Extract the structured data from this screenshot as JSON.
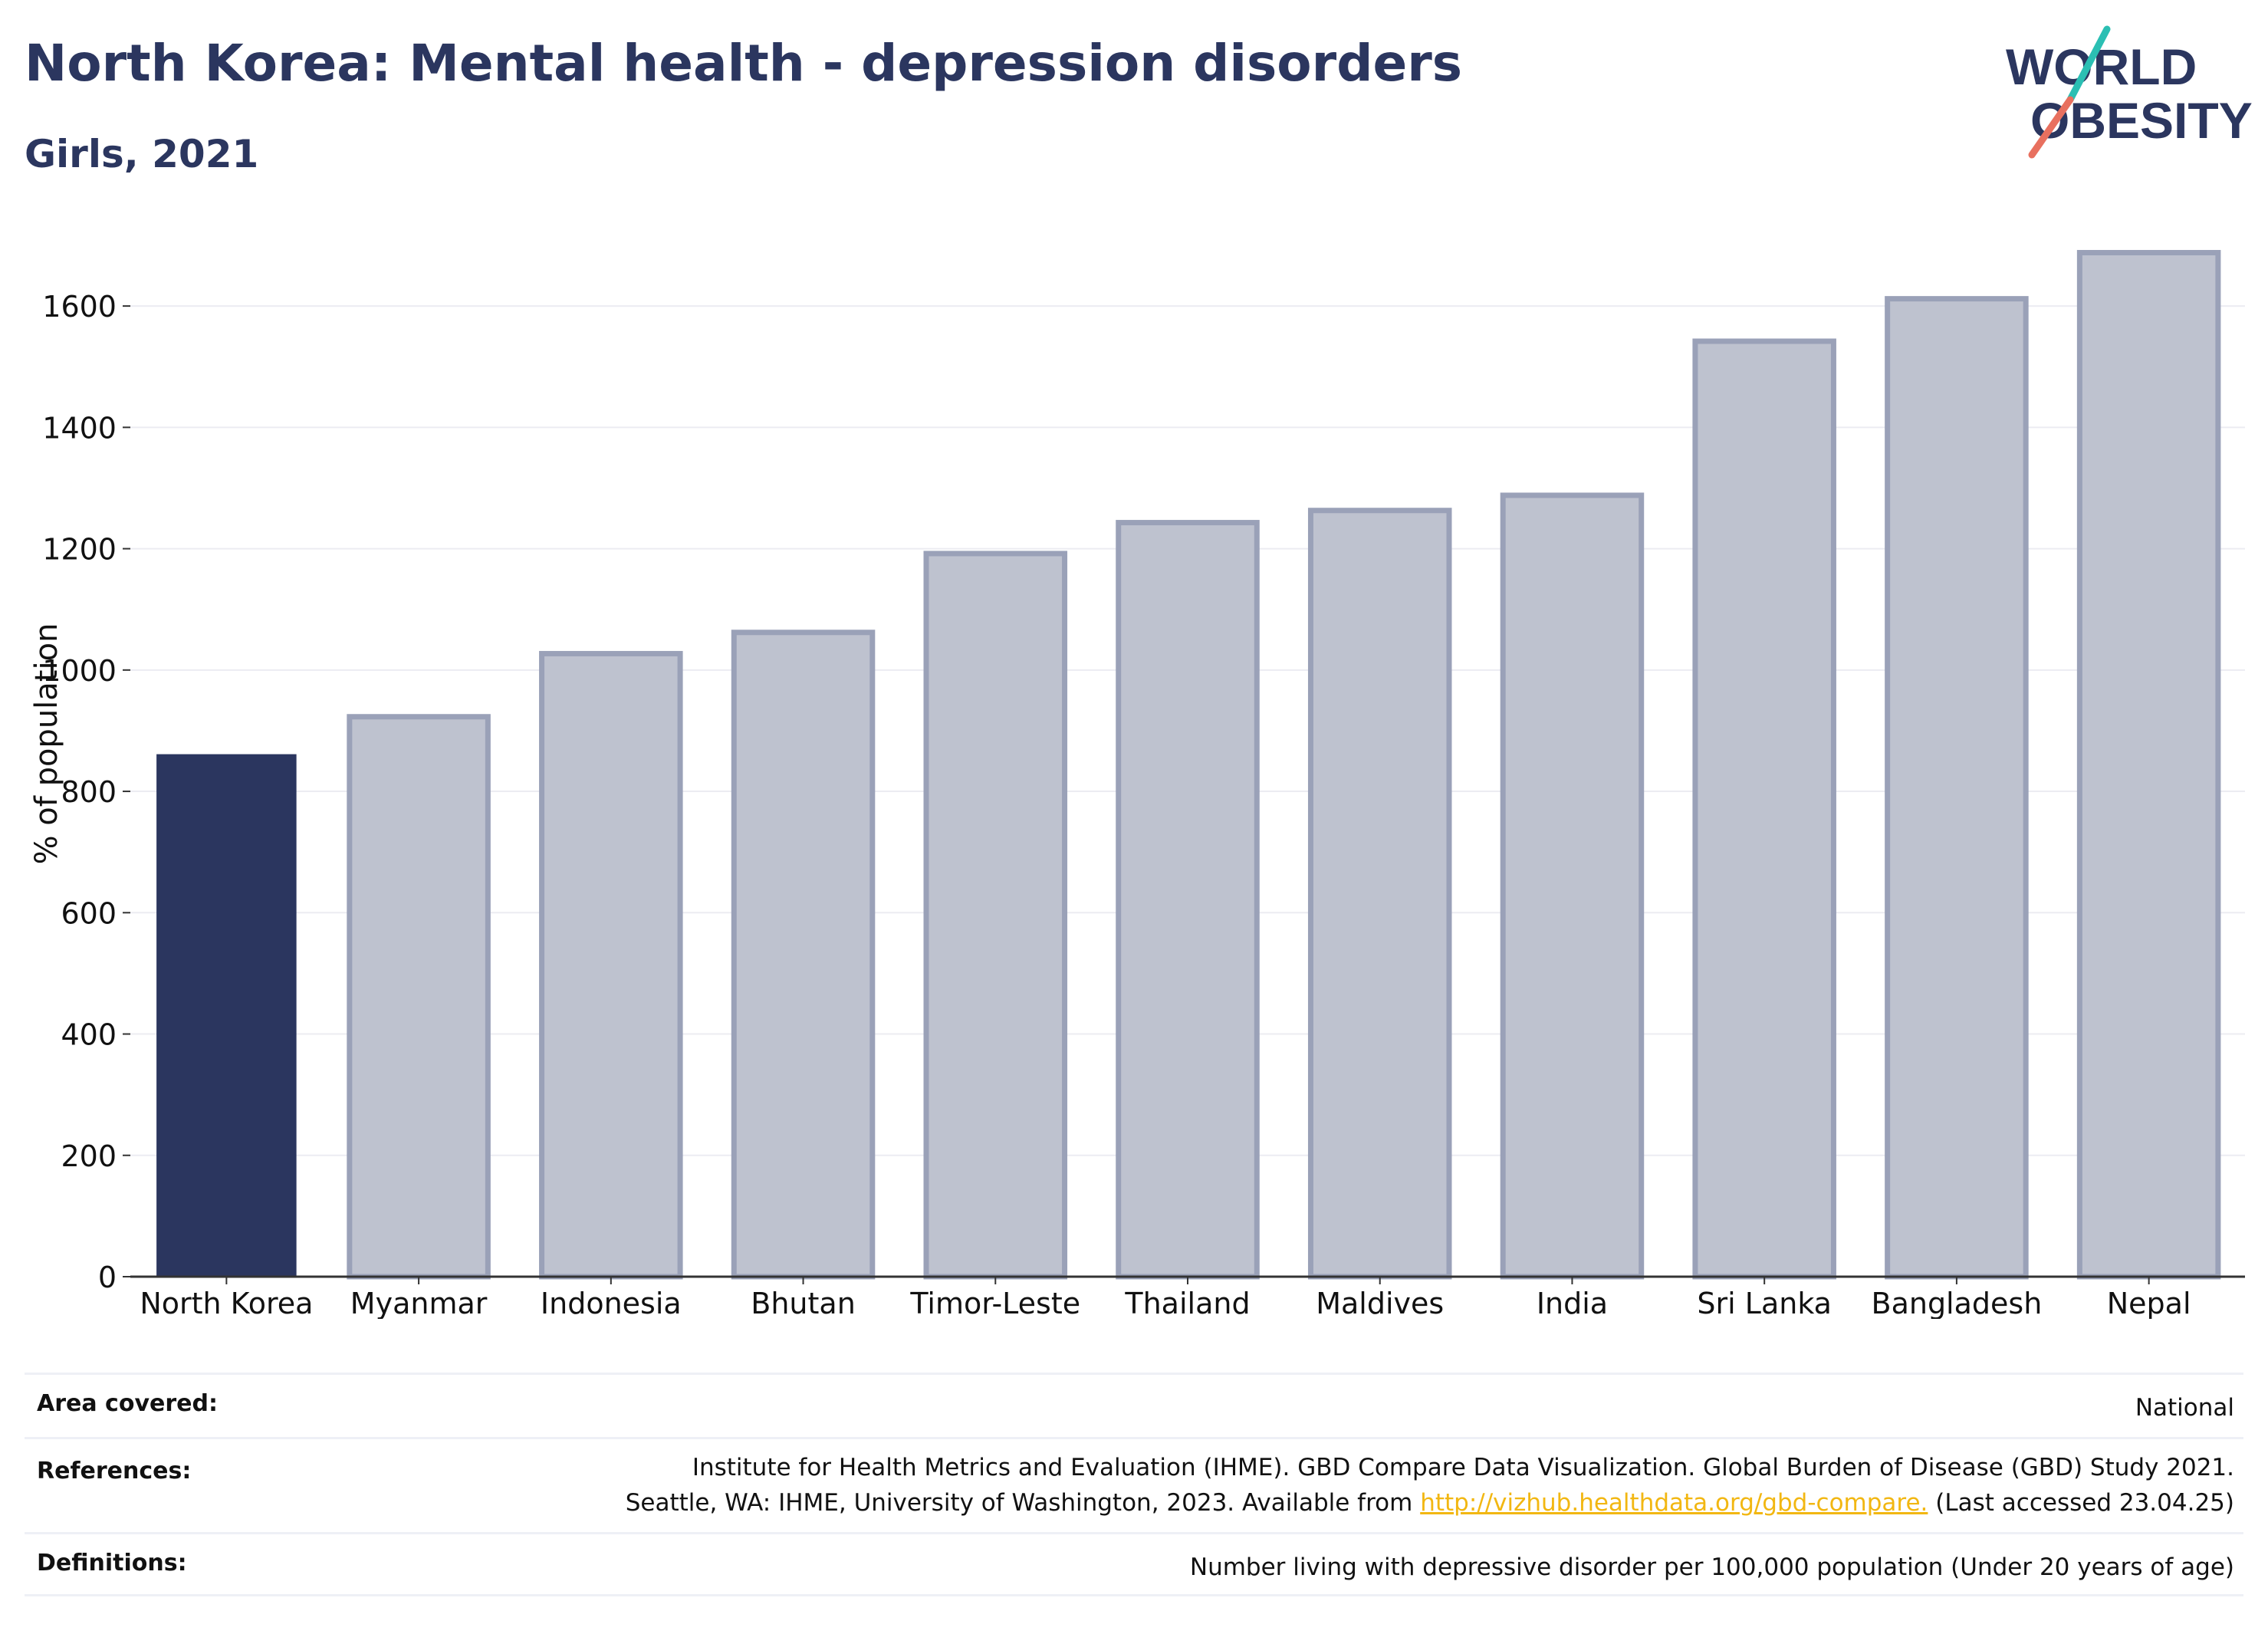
{
  "header": {
    "title": "North Korea: Mental health - depression disorders",
    "subtitle": "Girls, 2021"
  },
  "logo": {
    "line1": "WORLD",
    "line2": "OBESITY",
    "colors": {
      "text": "#2b365f",
      "slash_teal": "#2bbfb3",
      "slash_coral": "#e8705f"
    }
  },
  "chart_data": {
    "type": "bar",
    "title": "",
    "xlabel": "",
    "ylabel": "% of population",
    "ylim": [
      0,
      1700
    ],
    "yticks": [
      0,
      200,
      400,
      600,
      800,
      1000,
      1200,
      1400,
      1600
    ],
    "grid": true,
    "categories": [
      "North Korea",
      "Myanmar",
      "Indonesia",
      "Bhutan",
      "Timor-Leste",
      "Thailand",
      "Maldives",
      "India",
      "Sri Lanka",
      "Bangladesh",
      "Nepal"
    ],
    "values": [
      860,
      923,
      1027,
      1062,
      1192,
      1243,
      1263,
      1288,
      1542,
      1612,
      1688
    ],
    "highlight": "North Korea",
    "colors": {
      "highlight": "#2b365f",
      "other_fill": "#bec2cf",
      "other_stroke": "#9aa1b8"
    }
  },
  "meta": {
    "area_label": "Area covered:",
    "area_value": "National",
    "refs_label": "References:",
    "refs_line1": "Institute for Health Metrics and Evaluation (IHME). GBD Compare Data Visualization. Global Burden of Disease (GBD) Study 2021.",
    "refs_line2_pre": "Seattle, WA: IHME, University of Washington, 2023. Available from ",
    "refs_link": "http://vizhub.healthdata.org/gbd-compare.",
    "refs_line2_post": " (Last accessed 23.04.25)",
    "defs_label": "Definitions:",
    "defs_value": "Number living with depressive disorder per 100,000 population (Under 20 years of age)"
  }
}
